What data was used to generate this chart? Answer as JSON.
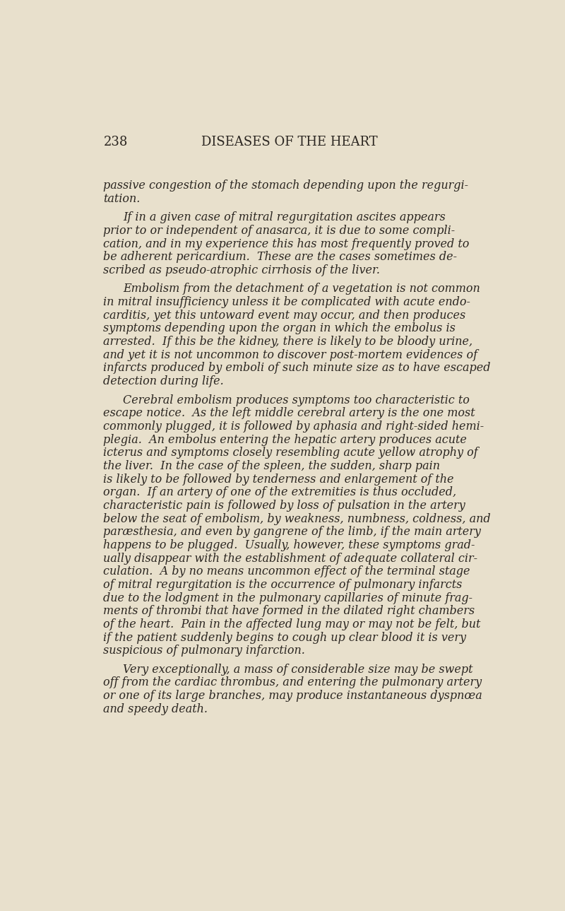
{
  "background_color": "#e8e0cc",
  "page_number": "238",
  "header_title": "DISEASES OF THE HEART",
  "text_color": "#2a2520",
  "header_fontsize": 13,
  "body_fontsize": 11.5,
  "page_number_fontsize": 13,
  "paragraphs": [
    {
      "indent": false,
      "text": "passive congestion of the stomach depending upon the regurgi-\ntation."
    },
    {
      "indent": true,
      "text": "If in a given case of mitral regurgitation ascites appears\nprior to or independent of anasarca, it is due to some compli-\ncation, and in my experience this has most frequently proved to\nbe adherent pericardium.  These are the cases sometimes de-\nscribed as pseudo-atrophic cirrhosis of the liver."
    },
    {
      "indent": true,
      "text": "Embolism from the detachment of a vegetation is not common\nin mitral insufficiency unless it be complicated with acute endo-\ncarditis, yet this untoward event may occur, and then produces\nsymptoms depending upon the organ in which the embolus is\narrested.  If this be the kidney, there is likely to be bloody urine,\nand yet it is not uncommon to discover post-mortem evidences of\ninfarcts produced by emboli of such minute size as to have escaped\ndetection during life."
    },
    {
      "indent": true,
      "text": "Cerebral embolism produces symptoms too characteristic to\nescape notice.  As the left middle cerebral artery is the one most\ncommonly plugged, it is followed by aphasia and right-sided hemi-\nplegia.  An embolus entering the hepatic artery produces acute\nicterus and symptoms closely resembling acute yellow atrophy of\nthe liver.  In the case of the spleen, the sudden, sharp pain\nis likely to be followed by tenderness and enlargement of the\norgan.  If an artery of one of the extremities is thus occluded,\ncharacteristic pain is followed by loss of pulsation in the artery\nbelow the seat of embolism, by weakness, numbness, coldness, and\nparæsthesia, and even by gangrene of the limb, if the main artery\nhappens to be plugged.  Usually, however, these symptoms grad-\nually disappear with the establishment of adequate collateral cir-\nculation.  A by no means uncommon effect of the terminal stage\nof mitral regurgitation is the occurrence of pulmonary infarcts\ndue to the lodgment in the pulmonary capillaries of minute frag-\nments of thrombi that have formed in the dilated right chambers\nof the heart.  Pain in the affected lung may or may not be felt, but\nif the patient suddenly begins to cough up clear blood it is very\nsuspicious of pulmonary infarction."
    },
    {
      "indent": true,
      "text": "Very exceptionally, a mass of considerable size may be swept\noff from the cardiac thrombus, and entering the pulmonary artery\nor one of its large branches, may produce instantaneous dyspnœa\nand speedy death."
    }
  ]
}
